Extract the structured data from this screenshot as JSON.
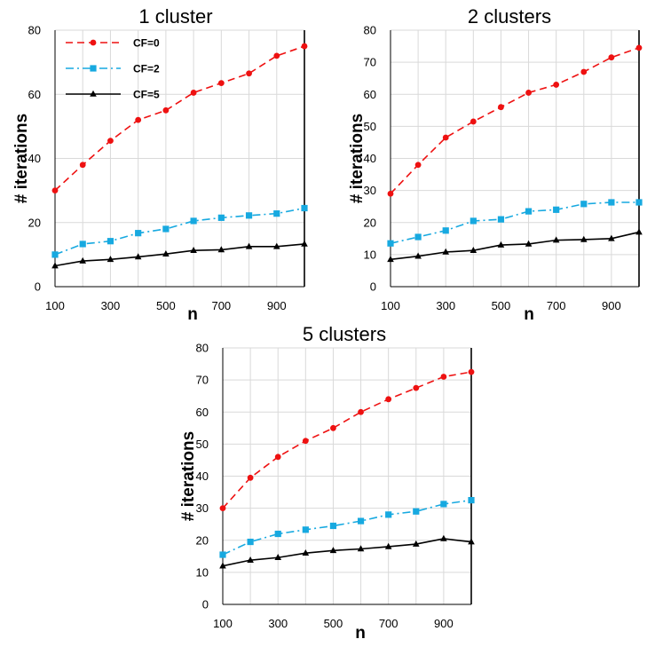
{
  "chart_data": [
    {
      "type": "line",
      "title": "1 cluster",
      "xlabel": "n",
      "ylabel": "# iterations",
      "x": [
        100,
        200,
        300,
        400,
        500,
        600,
        700,
        800,
        900,
        1000
      ],
      "x_tick_labels": [
        "100",
        "300",
        "500",
        "700",
        "900"
      ],
      "y_tick_labels": [
        "0",
        "20",
        "40",
        "60",
        "80"
      ],
      "xlim": [
        100,
        1000
      ],
      "ylim": [
        0,
        80
      ],
      "yticks": [
        0,
        20,
        40,
        60,
        80
      ],
      "grid": true,
      "legend": "top-left",
      "series": [
        {
          "name": "CF=0",
          "color": "#ee1111",
          "style": "dashed",
          "marker": "circle",
          "values": [
            30,
            38,
            45.5,
            52,
            55,
            60.5,
            63.5,
            66.5,
            72,
            75
          ]
        },
        {
          "name": "CF=2",
          "color": "#17a9e0",
          "style": "dashdot",
          "marker": "square",
          "values": [
            10,
            13.3,
            14.2,
            16.7,
            18,
            20.5,
            21.5,
            22.2,
            22.8,
            24.5
          ]
        },
        {
          "name": "CF=5",
          "color": "#000000",
          "style": "solid",
          "marker": "triangle",
          "values": [
            6.5,
            8,
            8.5,
            9.3,
            10.2,
            11.3,
            11.5,
            12.5,
            12.5,
            13.3
          ]
        }
      ]
    },
    {
      "type": "line",
      "title": "2 clusters",
      "xlabel": "n",
      "ylabel": "# iterations",
      "x": [
        100,
        200,
        300,
        400,
        500,
        600,
        700,
        800,
        900,
        1000
      ],
      "x_tick_labels": [
        "100",
        "300",
        "500",
        "700",
        "900"
      ],
      "y_tick_labels": [
        "0",
        "10",
        "20",
        "30",
        "40",
        "50",
        "60",
        "70",
        "80"
      ],
      "xlim": [
        100,
        1000
      ],
      "ylim": [
        0,
        80
      ],
      "yticks": [
        0,
        10,
        20,
        30,
        40,
        50,
        60,
        70,
        80
      ],
      "grid": true,
      "series": [
        {
          "color": "#ee1111",
          "style": "dashed",
          "marker": "circle",
          "values": [
            29,
            38,
            46.5,
            51.5,
            56,
            60.5,
            63,
            67,
            71.5,
            74.5
          ]
        },
        {
          "color": "#17a9e0",
          "style": "dashdot",
          "marker": "square",
          "values": [
            13.5,
            15.5,
            17.5,
            20.5,
            21,
            23.5,
            24,
            25.8,
            26.3,
            26.3
          ]
        },
        {
          "color": "#000000",
          "style": "solid",
          "marker": "triangle",
          "values": [
            8.5,
            9.5,
            10.8,
            11.3,
            13,
            13.3,
            14.5,
            14.7,
            15,
            17
          ]
        }
      ]
    },
    {
      "type": "line",
      "title": "5 clusters",
      "xlabel": "n",
      "ylabel": "# iterations",
      "x": [
        100,
        200,
        300,
        400,
        500,
        600,
        700,
        800,
        900,
        1000
      ],
      "x_tick_labels": [
        "100",
        "300",
        "500",
        "700",
        "900"
      ],
      "y_tick_labels": [
        "0",
        "10",
        "20",
        "30",
        "40",
        "50",
        "60",
        "70",
        "80"
      ],
      "xlim": [
        100,
        1000
      ],
      "ylim": [
        0,
        80
      ],
      "yticks": [
        0,
        10,
        20,
        30,
        40,
        50,
        60,
        70,
        80
      ],
      "grid": true,
      "series": [
        {
          "color": "#ee1111",
          "style": "dashed",
          "marker": "circle",
          "values": [
            30,
            39.5,
            46,
            51,
            55,
            60,
            64,
            67.5,
            71,
            72.5
          ]
        },
        {
          "color": "#17a9e0",
          "style": "dashdot",
          "marker": "square",
          "values": [
            15.5,
            19.5,
            22,
            23.3,
            24.5,
            26,
            28,
            29,
            31.3,
            32.5
          ]
        },
        {
          "color": "#000000",
          "style": "solid",
          "marker": "triangle",
          "values": [
            12,
            13.8,
            14.6,
            16,
            16.8,
            17.3,
            18,
            18.8,
            20.5,
            19.5
          ]
        }
      ]
    }
  ]
}
